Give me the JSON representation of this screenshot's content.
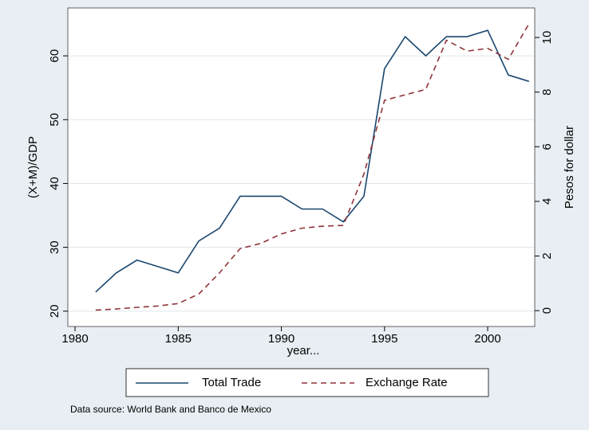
{
  "chart_data": {
    "type": "line",
    "xlabel": "year...",
    "ylabel": "(X+M)/GDP",
    "y2label": "Pesos for dollar",
    "note": "Data source: World Bank and Banco de Mexico",
    "x": [
      1981,
      1982,
      1983,
      1984,
      1985,
      1986,
      1987,
      1988,
      1989,
      1990,
      1991,
      1992,
      1993,
      1994,
      1995,
      1996,
      1997,
      1998,
      1999,
      2000,
      2001,
      2002
    ],
    "series": [
      {
        "name": "Total Trade",
        "color": "#1a476f",
        "dash": "solid",
        "values": [
          23,
          26,
          28,
          27,
          26,
          31,
          33,
          38,
          38,
          38,
          36,
          36,
          34,
          38,
          58,
          63,
          60,
          63,
          63,
          64,
          57,
          56
        ]
      },
      {
        "name": "Exchange Rate",
        "color": "#90353b",
        "dash": "dashed",
        "axis": "y2",
        "values": [
          0.02,
          0.06,
          0.12,
          0.17,
          0.26,
          0.61,
          1.38,
          2.27,
          2.46,
          2.81,
          3.02,
          3.09,
          3.12,
          5.0,
          7.7,
          7.9,
          8.1,
          9.9,
          9.5,
          9.6,
          9.2,
          10.5
        ]
      }
    ],
    "xlim": [
      1979.65,
      2002.28
    ],
    "xticks": [
      1980,
      1985,
      1990,
      1995,
      2000
    ],
    "ylim": [
      17.6,
      67.5
    ],
    "yticks": [
      20,
      30,
      40,
      50,
      60
    ],
    "y2lim": [
      -0.58,
      11.08
    ],
    "y2ticks": [
      0,
      2,
      4,
      6,
      8,
      10
    ],
    "grid": true
  }
}
